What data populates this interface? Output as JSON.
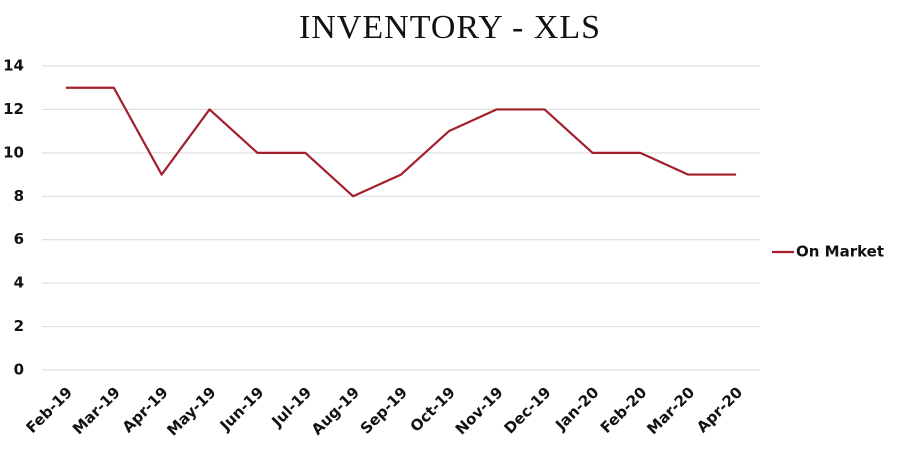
{
  "chart_data": {
    "type": "line",
    "title": "INVENTORY - XLS",
    "categories": [
      "Feb-19",
      "Mar-19",
      "Apr-19",
      "May-19",
      "Jun-19",
      "Jul-19",
      "Aug-19",
      "Sep-19",
      "Oct-19",
      "Nov-19",
      "Dec-19",
      "Jan-20",
      "Feb-20",
      "Mar-20",
      "Apr-20"
    ],
    "series": [
      {
        "name": "On Market",
        "color": "#a31f2e",
        "values": [
          13,
          13,
          9,
          12,
          10,
          10,
          8,
          9,
          11,
          12,
          12,
          10,
          10,
          9,
          9
        ]
      }
    ],
    "ylim": [
      0,
      14
    ],
    "yticks": [
      0,
      2,
      4,
      6,
      8,
      10,
      12,
      14
    ],
    "grid": true,
    "legend": "right"
  }
}
